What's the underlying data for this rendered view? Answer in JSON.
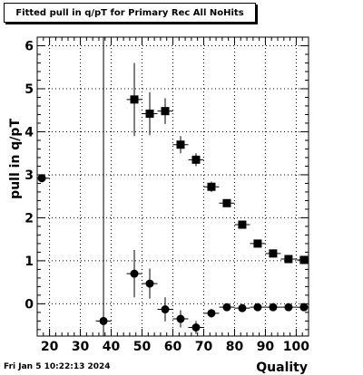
{
  "chart_data": {
    "type": "scatter",
    "title": "Fitted pull in q/pT for Primary Rec All NoHits",
    "xlabel": "Quality",
    "ylabel": "pull in q/pT",
    "xlim": [
      16,
      104
    ],
    "ylim": [
      -0.75,
      6.2
    ],
    "x_ticks": [
      20,
      30,
      40,
      50,
      60,
      70,
      80,
      90,
      100
    ],
    "y_ticks": [
      0,
      1,
      2,
      3,
      4,
      5,
      6
    ],
    "grid": true,
    "series": [
      {
        "marker": "square",
        "points": [
          {
            "x": 47.5,
            "y": 4.75,
            "xerr": 2.5,
            "yerr": 0.85
          },
          {
            "x": 52.5,
            "y": 4.42,
            "xerr": 2.5,
            "yerr": 0.5
          },
          {
            "x": 57.5,
            "y": 4.48,
            "xerr": 2.5,
            "yerr": 0.3
          },
          {
            "x": 62.5,
            "y": 3.7,
            "xerr": 2.5,
            "yerr": 0.2
          },
          {
            "x": 67.5,
            "y": 3.35,
            "xerr": 2.5,
            "yerr": 0.15
          },
          {
            "x": 72.5,
            "y": 2.72,
            "xerr": 2.5,
            "yerr": 0.12
          },
          {
            "x": 77.5,
            "y": 2.34,
            "xerr": 2.5,
            "yerr": 0.08
          },
          {
            "x": 82.5,
            "y": 1.84,
            "xerr": 2.5,
            "yerr": 0.06
          },
          {
            "x": 87.5,
            "y": 1.4,
            "xerr": 2.5,
            "yerr": 0.05
          },
          {
            "x": 92.5,
            "y": 1.17,
            "xerr": 2.5,
            "yerr": 0.04
          },
          {
            "x": 97.5,
            "y": 1.04,
            "xerr": 2.5,
            "yerr": 0.03
          },
          {
            "x": 102.5,
            "y": 1.02,
            "xerr": 2.5,
            "yerr": 0.03
          }
        ]
      },
      {
        "marker": "circle",
        "points": [
          {
            "x": 17.5,
            "y": 2.92,
            "xerr": 2.5,
            "yerr": 0.05
          },
          {
            "x": 37.5,
            "y": -0.4,
            "xerr": 2.5,
            "yerr": 6.8
          },
          {
            "x": 47.5,
            "y": 0.7,
            "xerr": 2.5,
            "yerr": 0.55
          },
          {
            "x": 52.5,
            "y": 0.47,
            "xerr": 2.5,
            "yerr": 0.35
          },
          {
            "x": 57.5,
            "y": -0.13,
            "xerr": 2.5,
            "yerr": 0.28
          },
          {
            "x": 62.5,
            "y": -0.35,
            "xerr": 2.5,
            "yerr": 0.2
          },
          {
            "x": 67.5,
            "y": -0.55,
            "xerr": 2.5,
            "yerr": 0.15
          },
          {
            "x": 72.5,
            "y": -0.22,
            "xerr": 2.5,
            "yerr": 0.1
          },
          {
            "x": 77.5,
            "y": -0.08,
            "xerr": 2.5,
            "yerr": 0.06
          },
          {
            "x": 82.5,
            "y": -0.1,
            "xerr": 2.5,
            "yerr": 0.05
          },
          {
            "x": 87.5,
            "y": -0.08,
            "xerr": 2.5,
            "yerr": 0.04
          },
          {
            "x": 92.5,
            "y": -0.08,
            "xerr": 2.5,
            "yerr": 0.04
          },
          {
            "x": 97.5,
            "y": -0.08,
            "xerr": 2.5,
            "yerr": 0.03
          },
          {
            "x": 102.5,
            "y": -0.08,
            "xerr": 2.5,
            "yerr": 0.03
          }
        ]
      }
    ]
  },
  "footer": {
    "date_stamp": "Fri Jan  5 10:22:13 2024"
  },
  "colors": {
    "marker": "#000000",
    "grid": "#000000",
    "background": "#ffffff"
  }
}
